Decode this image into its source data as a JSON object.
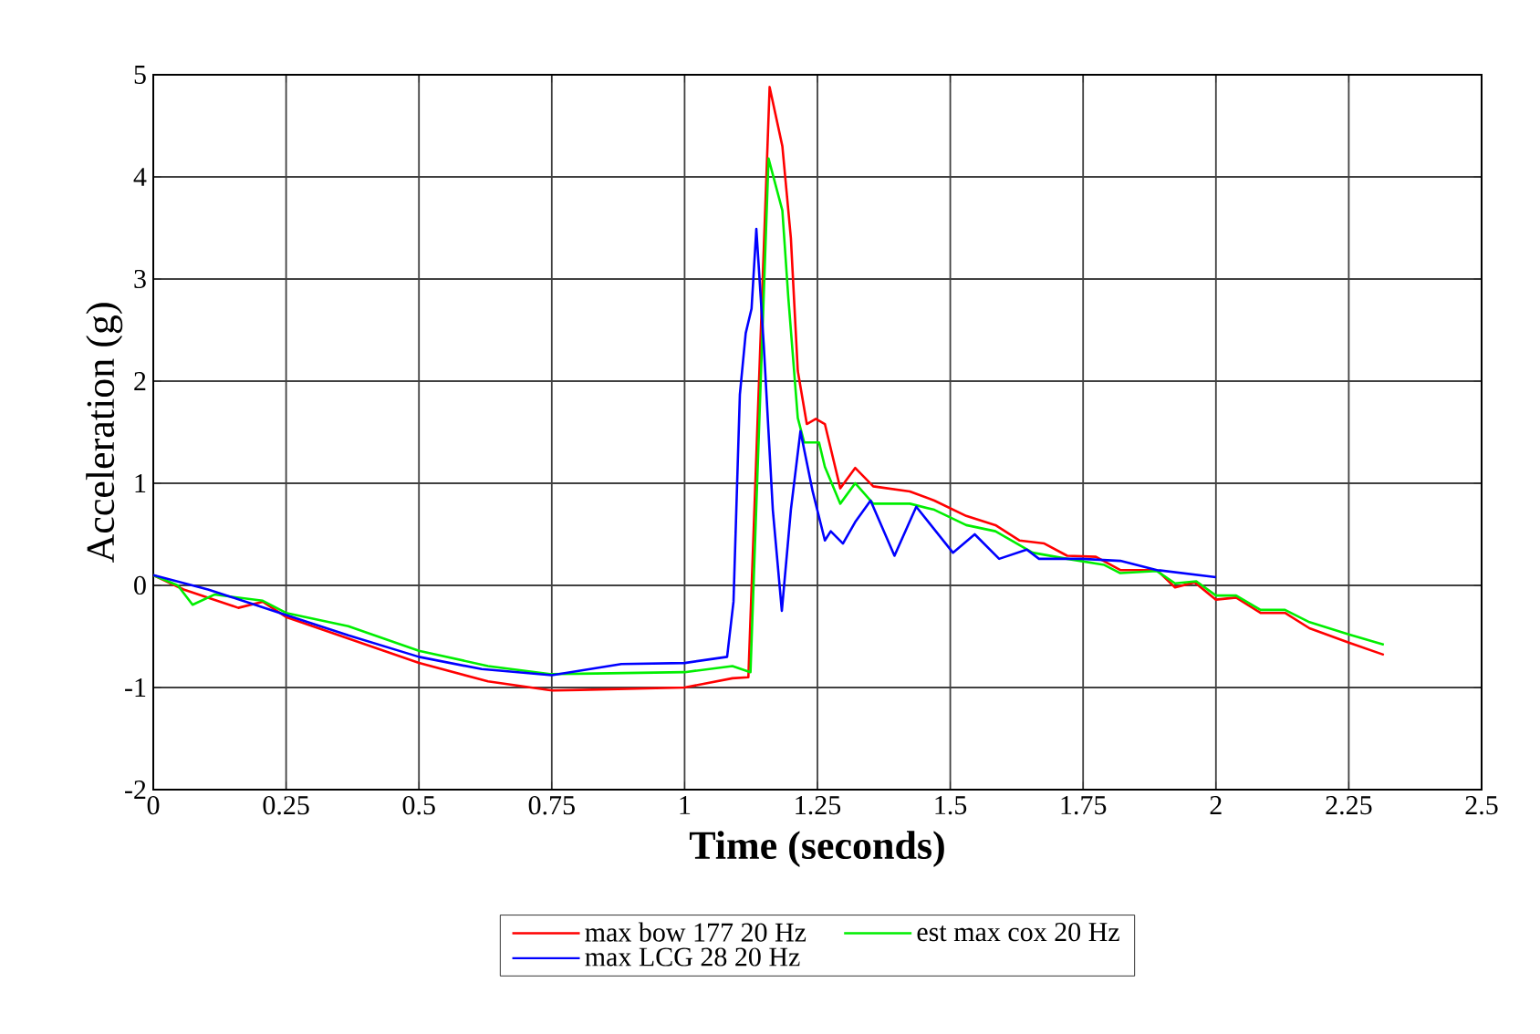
{
  "chart_data": {
    "type": "line",
    "xlabel": "Time (seconds)",
    "ylabel": "Acceleration (g)",
    "xlim": [
      0,
      2.5
    ],
    "xticks": [
      0,
      0.25,
      0.5,
      0.75,
      1,
      1.25,
      1.5,
      1.75,
      2,
      2.25,
      2.5
    ],
    "ylim": [
      -2,
      5
    ],
    "yticks": [
      -2,
      -1,
      0,
      1,
      2,
      3,
      4,
      5
    ],
    "grid": true,
    "legend": "bottom",
    "marker": "none",
    "line_style": "solid",
    "series": [
      {
        "name": "max bow 177 20 Hz",
        "color": "#ff0000",
        "x": [
          0,
          0.057,
          0.16,
          0.206,
          0.25,
          0.367,
          0.5,
          0.63,
          0.75,
          1.0,
          1.09,
          1.12,
          1.16,
          1.184,
          1.2,
          1.213,
          1.23,
          1.247,
          1.264,
          1.293,
          1.321,
          1.355,
          1.424,
          1.47,
          1.53,
          1.585,
          1.63,
          1.677,
          1.72,
          1.774,
          1.82,
          1.889,
          1.923,
          1.96,
          2.0,
          2.038,
          2.084,
          2.13,
          2.176,
          2.25,
          2.316
        ],
        "values": [
          0.1,
          -0.04,
          -0.22,
          -0.16,
          -0.31,
          -0.52,
          -0.76,
          -0.94,
          -1.03,
          -1.0,
          -0.91,
          -0.9,
          4.88,
          4.3,
          3.4,
          2.1,
          1.58,
          1.63,
          1.58,
          0.95,
          1.15,
          0.97,
          0.92,
          0.83,
          0.68,
          0.59,
          0.44,
          0.41,
          0.29,
          0.28,
          0.15,
          0.15,
          -0.02,
          0.03,
          -0.14,
          -0.12,
          -0.27,
          -0.27,
          -0.42,
          -0.56,
          -0.68
        ]
      },
      {
        "name": "est max cox  20 Hz",
        "color": "#00ee00",
        "x": [
          0,
          0.046,
          0.074,
          0.115,
          0.206,
          0.25,
          0.367,
          0.5,
          0.63,
          0.75,
          1.0,
          1.09,
          1.124,
          1.158,
          1.184,
          1.195,
          1.213,
          1.225,
          1.253,
          1.264,
          1.293,
          1.321,
          1.355,
          1.424,
          1.47,
          1.53,
          1.585,
          1.655,
          1.72,
          1.79,
          1.82,
          1.889,
          1.923,
          1.963,
          2.0,
          2.038,
          2.084,
          2.13,
          2.176,
          2.25,
          2.316
        ],
        "values": [
          0.1,
          0.0,
          -0.19,
          -0.09,
          -0.15,
          -0.27,
          -0.4,
          -0.64,
          -0.79,
          -0.87,
          -0.85,
          -0.79,
          -0.85,
          4.18,
          3.67,
          2.83,
          1.64,
          1.4,
          1.4,
          1.16,
          0.8,
          1.0,
          0.8,
          0.8,
          0.74,
          0.59,
          0.53,
          0.32,
          0.26,
          0.2,
          0.12,
          0.14,
          0.02,
          0.04,
          -0.1,
          -0.1,
          -0.24,
          -0.24,
          -0.36,
          -0.48,
          -0.58
        ]
      },
      {
        "name": "max LCG 28 20 Hz",
        "color": "#0000ff",
        "x": [
          0,
          0.103,
          0.25,
          0.367,
          0.5,
          0.618,
          0.75,
          0.881,
          1.0,
          1.08,
          1.092,
          1.104,
          1.115,
          1.126,
          1.135,
          1.149,
          1.166,
          1.183,
          1.2,
          1.218,
          1.241,
          1.264,
          1.275,
          1.298,
          1.321,
          1.35,
          1.395,
          1.436,
          1.505,
          1.546,
          1.592,
          1.644,
          1.667,
          1.747,
          1.82,
          1.889,
          2.0
        ],
        "values": [
          0.1,
          -0.04,
          -0.29,
          -0.49,
          -0.7,
          -0.82,
          -0.88,
          -0.77,
          -0.76,
          -0.7,
          -0.16,
          1.87,
          2.47,
          2.71,
          3.49,
          2.35,
          0.74,
          -0.25,
          0.74,
          1.51,
          0.92,
          0.44,
          0.53,
          0.41,
          0.62,
          0.83,
          0.29,
          0.77,
          0.32,
          0.5,
          0.26,
          0.35,
          0.26,
          0.26,
          0.24,
          0.15,
          0.08
        ]
      }
    ]
  }
}
